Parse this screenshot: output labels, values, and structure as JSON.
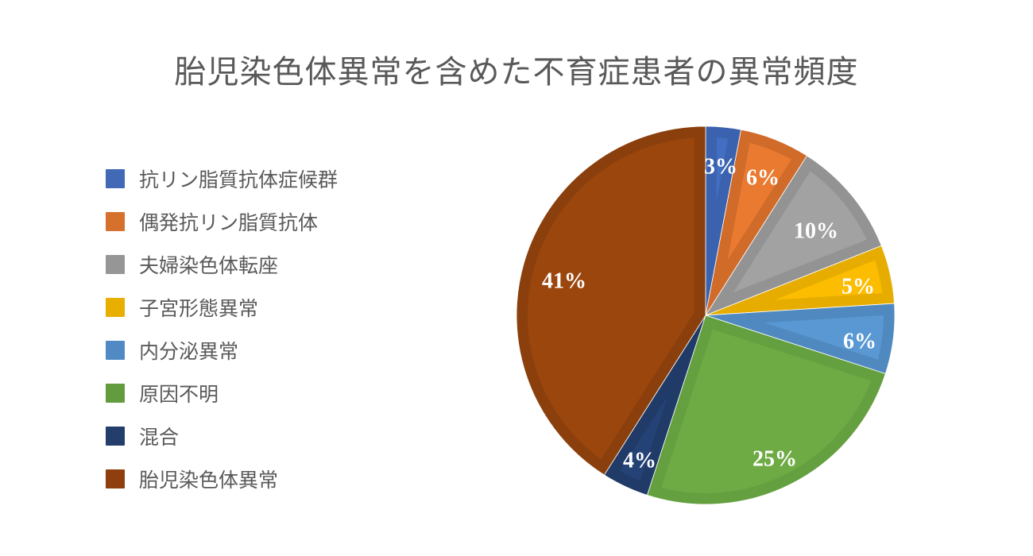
{
  "chart_data": {
    "type": "pie",
    "title": "胎児染色体異常を含めた不育症患者の異常頻度",
    "legend_position": "left",
    "start_angle_deg": 0,
    "direction": "clockwise",
    "categories": [
      "抗リン脂質抗体症候群",
      "偶発抗リン脂質抗体",
      "夫婦染色体転座",
      "子宮形態異常",
      "内分泌異常",
      "原因不明",
      "混合",
      "胎児染色体異常"
    ],
    "values": [
      3,
      6,
      10,
      5,
      6,
      25,
      4,
      41
    ],
    "labels": [
      "3%",
      "6%",
      "10%",
      "5%",
      "6%",
      "25%",
      "4%",
      "41%"
    ],
    "colors": [
      "#4472C4",
      "#ED7D31",
      "#A5A5A5",
      "#FFC000",
      "#5B9BD5",
      "#70AD47",
      "#264478",
      "#9E480E"
    ],
    "border_colors": [
      "#3A62AE",
      "#D06B2A",
      "#939393",
      "#E6AD00",
      "#4F89C0",
      "#64A03F",
      "#203B68",
      "#8B3F0C"
    ]
  },
  "title": "胎児染色体異常を含めた不育症患者の異常頻度",
  "legend": {
    "items": [
      {
        "label": "抗リン脂質抗体症候群",
        "color": "#4169B5"
      },
      {
        "label": "偶発抗リン脂質抗体",
        "color": "#D6702D"
      },
      {
        "label": "夫婦染色体転座",
        "color": "#969696"
      },
      {
        "label": "子宮形態異常",
        "color": "#E8AE00"
      },
      {
        "label": "内分泌異常",
        "color": "#5089C3"
      },
      {
        "label": "原因不明",
        "color": "#629C3F"
      },
      {
        "label": "混合",
        "color": "#233E6B"
      },
      {
        "label": "胎児染色体異常",
        "color": "#8E3F0D"
      }
    ]
  }
}
